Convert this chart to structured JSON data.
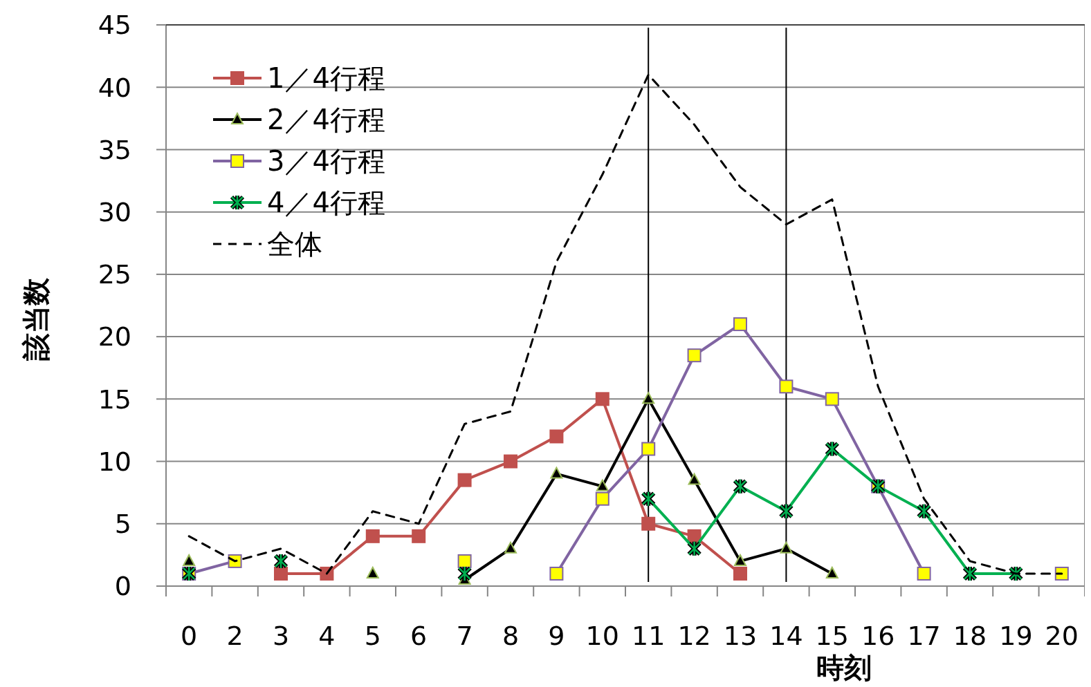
{
  "chart_data": {
    "type": "line",
    "xlabel": "時刻",
    "ylabel": "該当数",
    "categories": [
      "0",
      "2",
      "3",
      "4",
      "5",
      "6",
      "7",
      "8",
      "9",
      "10",
      "11",
      "12",
      "13",
      "14",
      "15",
      "16",
      "17",
      "18",
      "19",
      "20"
    ],
    "ylim": [
      0,
      45
    ],
    "yticks": [
      0,
      5,
      10,
      15,
      20,
      25,
      30,
      35,
      40,
      45
    ],
    "grid": "y",
    "legend": "top left",
    "series": [
      {
        "name": "1／4行程",
        "color": "#c0504d",
        "marker": "square",
        "line_style": "solid",
        "values": [
          null,
          null,
          1,
          1,
          4,
          4,
          8.5,
          10,
          12,
          15,
          5,
          4,
          1,
          null,
          null,
          null,
          null,
          null,
          null,
          null
        ]
      },
      {
        "name": "2／4行程",
        "color": "#000000",
        "marker": "triangle",
        "line_style": "solid",
        "values": [
          2,
          null,
          null,
          null,
          1,
          null,
          0.5,
          3,
          9,
          8,
          15,
          8.5,
          2,
          3,
          1,
          null,
          null,
          null,
          null,
          null
        ]
      },
      {
        "name": "3／4行程",
        "color": "#8064a2",
        "marker": "square",
        "line_style": "solid",
        "values": [
          1,
          2,
          null,
          null,
          null,
          null,
          2,
          null,
          1,
          7,
          11,
          18.5,
          21,
          16,
          15,
          8,
          1,
          null,
          null,
          1
        ]
      },
      {
        "name": "4／4行程",
        "color": "#00b050",
        "marker": "cross",
        "line_style": "solid",
        "values": [
          1,
          null,
          2,
          null,
          null,
          null,
          1,
          null,
          null,
          null,
          7,
          3,
          8,
          6,
          11,
          8,
          6,
          1,
          1,
          null
        ]
      },
      {
        "name": "全体",
        "color": "#000000",
        "marker": "none",
        "line_style": "dashed",
        "values": [
          4,
          2,
          3,
          1,
          6,
          5,
          13,
          14,
          26,
          33,
          41,
          37,
          32,
          29,
          31,
          16,
          7,
          2,
          1,
          1
        ]
      }
    ],
    "ref_lines": [
      {
        "axis": "x",
        "value": "11",
        "color": "#000000"
      },
      {
        "axis": "x",
        "value": "14",
        "color": "#000000"
      }
    ]
  }
}
